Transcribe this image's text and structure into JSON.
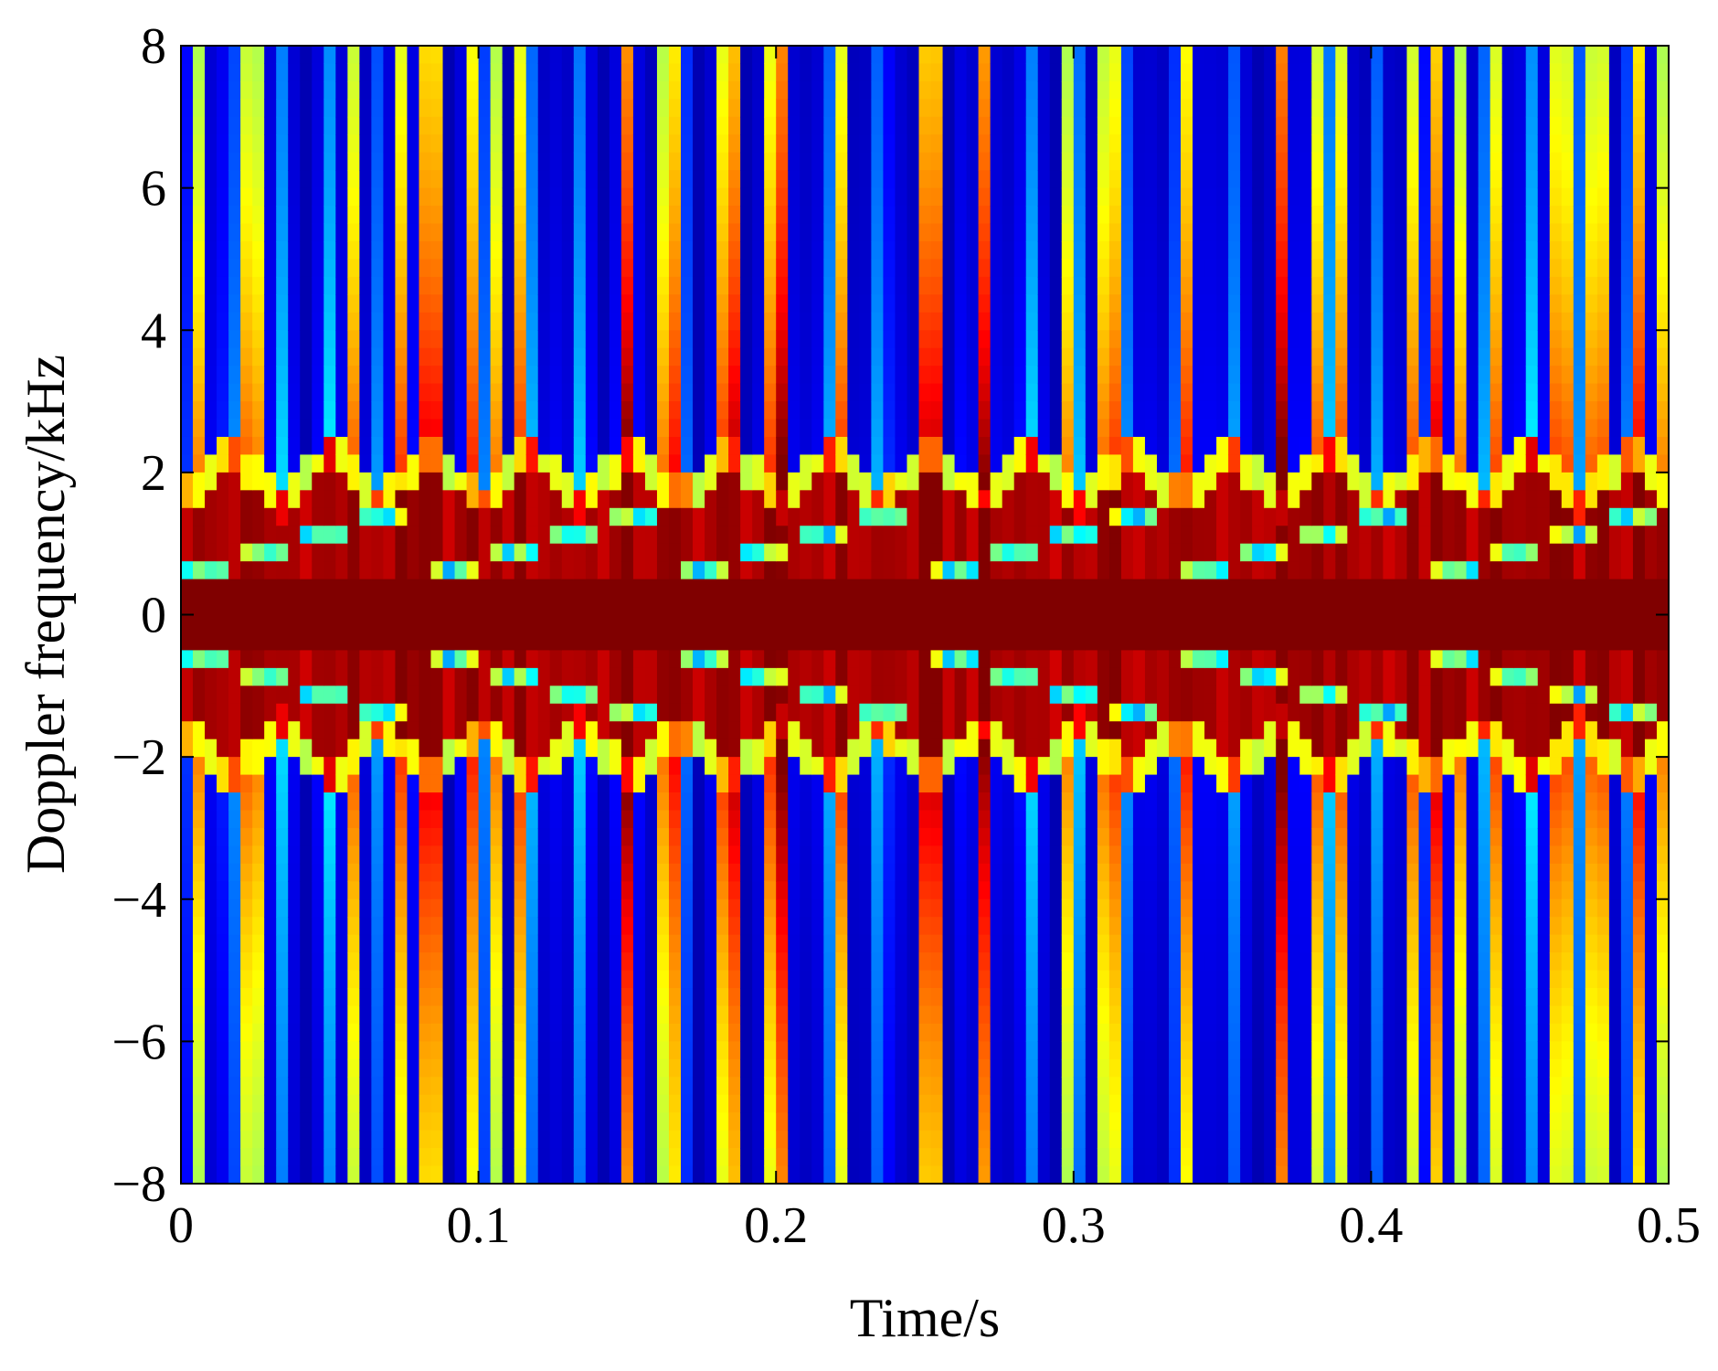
{
  "chart_data": {
    "type": "heatmap",
    "subtype": "spectrogram",
    "title": "",
    "xlabel": "Time/s",
    "ylabel": "Doppler frequency/kHz",
    "xlim": [
      0,
      0.5
    ],
    "ylim": [
      -8,
      8
    ],
    "xticks": [
      0,
      0.1,
      0.2,
      0.3,
      0.4,
      0.5
    ],
    "xtick_labels": [
      "0",
      "0.1",
      "0.2",
      "0.3",
      "0.4",
      "0.5"
    ],
    "yticks": [
      8,
      6,
      4,
      2,
      0,
      -2,
      -4,
      -6,
      -8
    ],
    "ytick_labels": [
      "8",
      "6",
      "4",
      "2",
      "0",
      "−2",
      "−4",
      "−6",
      "−8"
    ],
    "colormap": "jet",
    "colormap_colors": [
      "#00008f",
      "#0000ff",
      "#00ffff",
      "#ffff00",
      "#ff0000",
      "#800000"
    ],
    "grid": false,
    "main_lobe_halfwidth_khz": 0.45,
    "envelope_max_khz": 2.1,
    "envelope_min_khz": 1.35,
    "envelope_period_s": 0.0336,
    "flash_period_s": 0.0168,
    "band_inner_khz": 0.55,
    "time_resolution_s": 0.004
  }
}
